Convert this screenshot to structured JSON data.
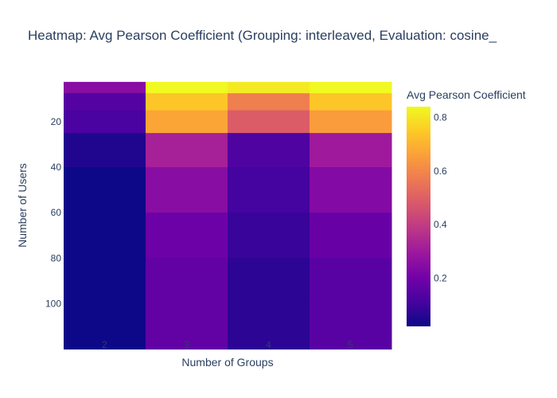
{
  "chart_data": {
    "type": "heatmap",
    "title": "Heatmap: Avg Pearson Coefficient (Grouping: interleaved, Evaluation: cosine_",
    "xlabel": "Number of Groups",
    "ylabel": "Number of Users",
    "colorbar_title": "Avg Pearson Coefficient",
    "x": [
      2,
      3,
      4,
      5
    ],
    "y": [
      5,
      10,
      20,
      30,
      50,
      70,
      90,
      110
    ],
    "z": [
      [
        0.25,
        0.84,
        0.81,
        0.84
      ],
      [
        0.14,
        0.74,
        0.58,
        0.74
      ],
      [
        0.12,
        0.67,
        0.49,
        0.65
      ],
      [
        0.05,
        0.32,
        0.13,
        0.3
      ],
      [
        0.02,
        0.25,
        0.11,
        0.24
      ],
      [
        0.02,
        0.19,
        0.09,
        0.18
      ],
      [
        0.02,
        0.17,
        0.07,
        0.15
      ],
      [
        0.02,
        0.17,
        0.07,
        0.15
      ]
    ],
    "xticks": [
      "2",
      "3",
      "4",
      "5"
    ],
    "yticks": [
      "20",
      "40",
      "60",
      "80",
      "100"
    ],
    "ytick_values": [
      20,
      40,
      60,
      80,
      100
    ],
    "ylim": [
      113.5,
      1.5
    ],
    "zlim": [
      0.02,
      0.84
    ],
    "colorbar_ticks": [
      "0.2",
      "0.4",
      "0.6",
      "0.8"
    ],
    "colorbar_tick_values": [
      0.2,
      0.4,
      0.6,
      0.8
    ],
    "colorscale": [
      "#0d0887",
      "#46039f",
      "#7201a8",
      "#9c179e",
      "#bd3786",
      "#d8576b",
      "#ed7953",
      "#fb9f3a",
      "#fdca26",
      "#f0f921"
    ]
  }
}
